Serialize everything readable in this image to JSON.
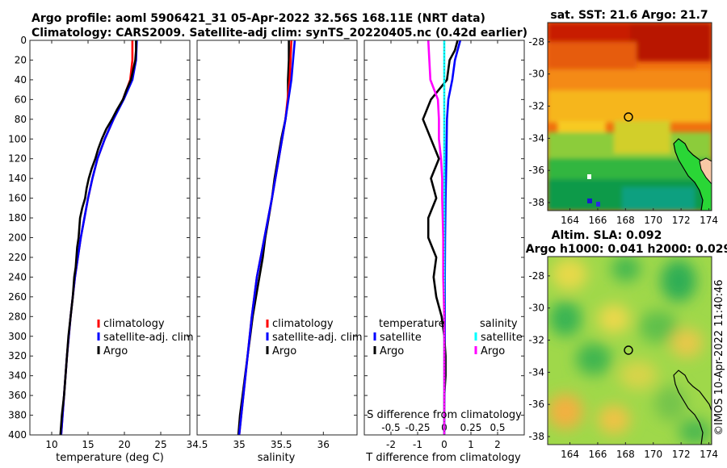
{
  "header": {
    "title_line1": "Argo profile: aoml 5906421_31 05-Apr-2022 32.56S 168.11E (NRT data)",
    "title_line2": "Climatology: CARS2009. Satellite-adj clim: synTS_20220405.nc (0.42d earlier)"
  },
  "colors": {
    "climatology": "#ff0000",
    "satellite": "#0000ff",
    "argo": "#000000",
    "sat_salinity": "#00ffff",
    "argo_salinity": "#ff00ff"
  },
  "chart_data": [
    {
      "id": "temperature",
      "type": "line",
      "xlabel": "temperature (deg C)",
      "xlim": [
        7,
        29
      ],
      "xticks": [
        10,
        15,
        20,
        25
      ],
      "ylim": [
        0,
        400
      ],
      "yticks": [
        0,
        20,
        40,
        60,
        80,
        100,
        120,
        140,
        160,
        180,
        200,
        220,
        240,
        260,
        280,
        300,
        320,
        340,
        360,
        380,
        400
      ],
      "legend": [
        "climatology",
        "satellite-adj. clim",
        "Argo"
      ],
      "series": [
        {
          "name": "climatology",
          "color": "#ff0000",
          "depth": [
            0,
            20,
            40,
            60,
            80,
            100,
            120,
            140,
            160,
            180,
            200,
            240,
            280,
            320,
            360,
            400
          ],
          "values": [
            21.1,
            21.1,
            20.8,
            19.8,
            18.5,
            17.3,
            16.3,
            15.6,
            15.0,
            14.5,
            14.0,
            13.2,
            12.6,
            12.1,
            11.7,
            11.3
          ]
        },
        {
          "name": "satellite-adj. clim",
          "color": "#0000ff",
          "depth": [
            0,
            20,
            40,
            60,
            80,
            100,
            120,
            140,
            160,
            180,
            200,
            240,
            280,
            320,
            360,
            400
          ],
          "values": [
            21.7,
            21.6,
            21.1,
            19.9,
            18.5,
            17.3,
            16.3,
            15.6,
            15.0,
            14.5,
            14.0,
            13.2,
            12.6,
            12.1,
            11.7,
            11.3
          ]
        },
        {
          "name": "Argo",
          "color": "#000000",
          "depth": [
            0,
            10,
            20,
            30,
            40,
            50,
            60,
            70,
            80,
            90,
            100,
            110,
            120,
            130,
            140,
            150,
            160,
            170,
            180,
            190,
            200,
            210,
            220,
            230,
            240,
            250,
            260,
            280,
            300,
            320,
            340,
            360,
            380,
            400
          ],
          "values": [
            21.6,
            21.6,
            21.5,
            21.2,
            20.9,
            20.3,
            19.8,
            19.0,
            18.3,
            17.5,
            16.9,
            16.4,
            16.0,
            15.5,
            15.1,
            14.8,
            14.6,
            14.2,
            13.9,
            13.8,
            13.7,
            13.5,
            13.4,
            13.3,
            13.1,
            13.0,
            12.9,
            12.6,
            12.3,
            12.1,
            11.9,
            11.7,
            11.4,
            11.2
          ]
        }
      ]
    },
    {
      "id": "salinity",
      "type": "line",
      "xlabel": "salinity",
      "xlim": [
        34.5,
        36.4
      ],
      "xticks": [
        34.5,
        35,
        35.5,
        36
      ],
      "ylim": [
        0,
        400
      ],
      "legend": [
        "climatology",
        "satellite-adj. clim",
        "Argo"
      ],
      "series": [
        {
          "name": "climatology",
          "color": "#ff0000",
          "depth": [
            0,
            40,
            80,
            120,
            160,
            200,
            240,
            280,
            320,
            360,
            400
          ],
          "values": [
            35.62,
            35.6,
            35.55,
            35.47,
            35.39,
            35.3,
            35.21,
            35.15,
            35.1,
            35.05,
            35.0
          ]
        },
        {
          "name": "satellite-adj. clim",
          "color": "#0000ff",
          "depth": [
            0,
            40,
            80,
            120,
            160,
            200,
            240,
            280,
            320,
            360,
            400
          ],
          "values": [
            35.66,
            35.62,
            35.55,
            35.47,
            35.39,
            35.3,
            35.21,
            35.15,
            35.1,
            35.05,
            35.0
          ]
        },
        {
          "name": "Argo",
          "color": "#000000",
          "depth": [
            0,
            20,
            40,
            60,
            80,
            100,
            120,
            140,
            160,
            180,
            200,
            220,
            240,
            260,
            280,
            300,
            320,
            340,
            360,
            380,
            400
          ],
          "values": [
            35.59,
            35.59,
            35.58,
            35.58,
            35.55,
            35.5,
            35.46,
            35.42,
            35.39,
            35.35,
            35.31,
            35.28,
            35.24,
            35.2,
            35.16,
            35.13,
            35.1,
            35.07,
            35.04,
            35.01,
            34.99
          ]
        }
      ]
    },
    {
      "id": "difference",
      "type": "line",
      "xlabel": "T difference from climatology",
      "xlabel_top": "S difference from climatology",
      "xlim": [
        -3,
        3
      ],
      "xticks": [
        -2,
        -1,
        0,
        1,
        2
      ],
      "s_xticks": [
        "-0.5",
        "-0.25",
        "0",
        "0.25",
        "0.5"
      ],
      "ylim": [
        0,
        400
      ],
      "legend_temperature_title": "temperature",
      "legend_salinity_title": "salinity",
      "legend_labels": {
        "satellite": "satellite",
        "argo": "Argo"
      },
      "series": [
        {
          "name": "temperature satellite",
          "color": "#0000ff",
          "depth": [
            0,
            10,
            20,
            40,
            60,
            80,
            120,
            160,
            200,
            240,
            280,
            320,
            360,
            400
          ],
          "values": [
            0.6,
            0.5,
            0.4,
            0.3,
            0.15,
            0.1,
            0.08,
            0.05,
            0.03,
            0.02,
            0.02,
            0.02,
            0.01,
            0.0
          ]
        },
        {
          "name": "temperature Argo",
          "color": "#000000",
          "depth": [
            0,
            10,
            20,
            40,
            60,
            80,
            100,
            120,
            140,
            160,
            180,
            200,
            220,
            240,
            260,
            280,
            300,
            320,
            340,
            360,
            380,
            400
          ],
          "values": [
            0.5,
            0.4,
            0.2,
            0.1,
            -0.5,
            -0.8,
            -0.5,
            -0.2,
            -0.5,
            -0.3,
            -0.6,
            -0.6,
            -0.3,
            -0.4,
            -0.3,
            -0.1,
            0.0,
            0.05,
            0.05,
            0.0,
            0.0,
            0.0
          ]
        },
        {
          "name": "salinity satellite",
          "color": "#00ffff",
          "depth": [
            0,
            20,
            40,
            80,
            120,
            200,
            280,
            320,
            360,
            400
          ],
          "values": [
            0.0,
            0.0,
            0.0,
            0.0,
            0.0,
            0.0,
            0.0,
            0.0,
            0.0,
            0.0
          ]
        },
        {
          "name": "salinity Argo",
          "color": "#ff00ff",
          "depth": [
            0,
            20,
            40,
            60,
            80,
            100,
            120,
            140,
            160,
            200,
            240,
            280,
            320,
            360,
            400
          ],
          "values": [
            -0.15,
            -0.14,
            -0.13,
            -0.06,
            -0.05,
            -0.05,
            -0.03,
            -0.02,
            -0.02,
            -0.01,
            -0.01,
            0.0,
            0.0,
            0.0,
            0.0
          ]
        }
      ]
    },
    {
      "id": "sst_map",
      "type": "heatmap",
      "title": "sat. SST: 21.6 Argo: 21.7",
      "xticks": [
        164,
        166,
        168,
        170,
        172,
        174
      ],
      "yticks": [
        -28,
        -30,
        -32,
        -34,
        -36,
        -38
      ],
      "xlim": [
        162.4,
        174.2
      ],
      "ylim": [
        -38.5,
        -26.8
      ],
      "argo_position": [
        168.11,
        -32.56
      ]
    },
    {
      "id": "sla_map",
      "type": "heatmap",
      "title": "Altim. SLA: 0.092",
      "subtitle": "Argo h1000: 0.041 h2000: 0.029",
      "xticks": [
        164,
        166,
        168,
        170,
        172,
        174
      ],
      "yticks": [
        -28,
        -30,
        -32,
        -34,
        -36,
        -38
      ],
      "xlim": [
        162.4,
        174.2
      ],
      "ylim": [
        -38.5,
        -26.8
      ],
      "argo_position": [
        168.11,
        -32.56
      ]
    }
  ],
  "credit": "©IMOS 10-Apr-2022 11:40:46"
}
